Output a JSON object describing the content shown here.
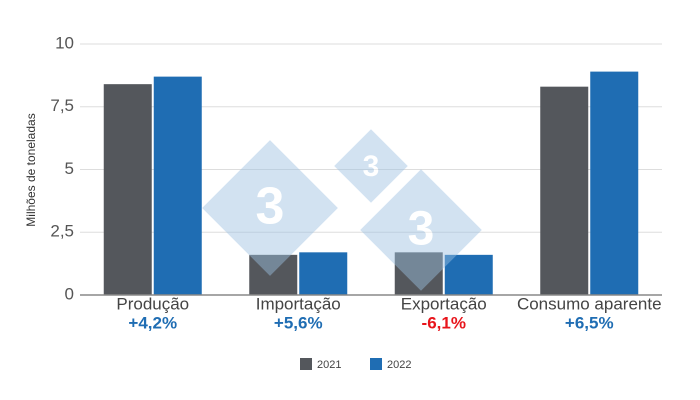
{
  "chart_data": {
    "type": "bar",
    "y_label": "Milhões de toneladas",
    "categories": [
      "Produção",
      "Importação",
      "Exportação",
      "Consumo aparente"
    ],
    "series": [
      {
        "name": "2021",
        "color": "#54575c",
        "values": [
          8.4,
          1.6,
          1.7,
          8.3
        ]
      },
      {
        "name": "2022",
        "color": "#1f6db3",
        "values": [
          8.7,
          1.7,
          1.6,
          8.9
        ]
      }
    ],
    "change_labels": [
      "+4,2%",
      "+5,6%",
      "-6,1%",
      "+6,5%"
    ],
    "change_colors": [
      "#1f6db3",
      "#1f6db3",
      "#e8141b",
      "#1f6db3"
    ],
    "ylim": [
      0,
      10
    ],
    "yticks": [
      0,
      {
        "value": 2.5,
        "label": "2,5"
      },
      5,
      {
        "value": 7.5,
        "label": "7,5"
      },
      10
    ],
    "grid": true,
    "legend": "bottom",
    "watermark": "3"
  }
}
